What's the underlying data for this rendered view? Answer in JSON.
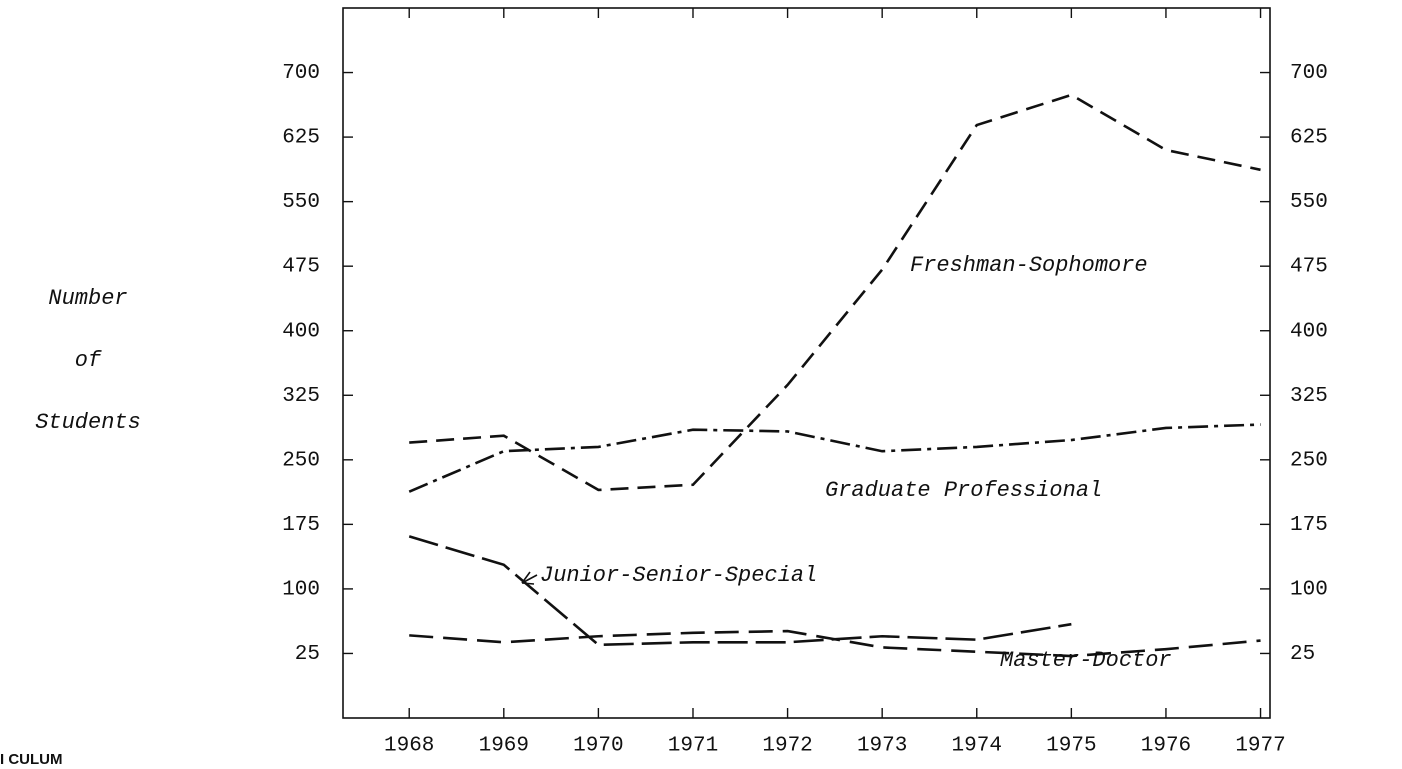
{
  "chart_data": {
    "type": "line",
    "ylabel": [
      "Number",
      "of",
      "Students"
    ],
    "fragment": "I CULUM",
    "x": [
      1968,
      1969,
      1970,
      1971,
      1972,
      1973,
      1974,
      1975,
      1976,
      1977
    ],
    "xlim": [
      1967.3,
      1977.1
    ],
    "xticks": [
      1968,
      1969,
      1970,
      1971,
      1972,
      1973,
      1974,
      1975,
      1976,
      1977
    ],
    "ylim": [
      -50,
      775
    ],
    "yticks": [
      25,
      100,
      175,
      250,
      325,
      400,
      475,
      550,
      625,
      700
    ],
    "y2lim": [
      -50,
      775
    ],
    "y2ticks": [
      25,
      100,
      175,
      250,
      325,
      400,
      475,
      550,
      625,
      700
    ],
    "series": [
      {
        "name": "Freshman-Sophomore",
        "color": "#111111",
        "values": [
          270,
          278,
          215,
          221,
          337,
          471,
          639,
          674,
          610,
          587
        ]
      },
      {
        "name": "Graduate Professional",
        "color": "#111111",
        "values": [
          213,
          260,
          265,
          285,
          283,
          260,
          265,
          273,
          287,
          291
        ]
      },
      {
        "name": "Junior-Senior-Special",
        "color": "#111111",
        "values": [
          161,
          128,
          35,
          38,
          38,
          45,
          41,
          59,
          null,
          null
        ]
      },
      {
        "name": "Master-Doctor",
        "color": "#111111",
        "values": [
          46,
          38,
          45,
          49,
          51,
          32,
          27,
          22,
          30,
          40
        ]
      }
    ]
  }
}
